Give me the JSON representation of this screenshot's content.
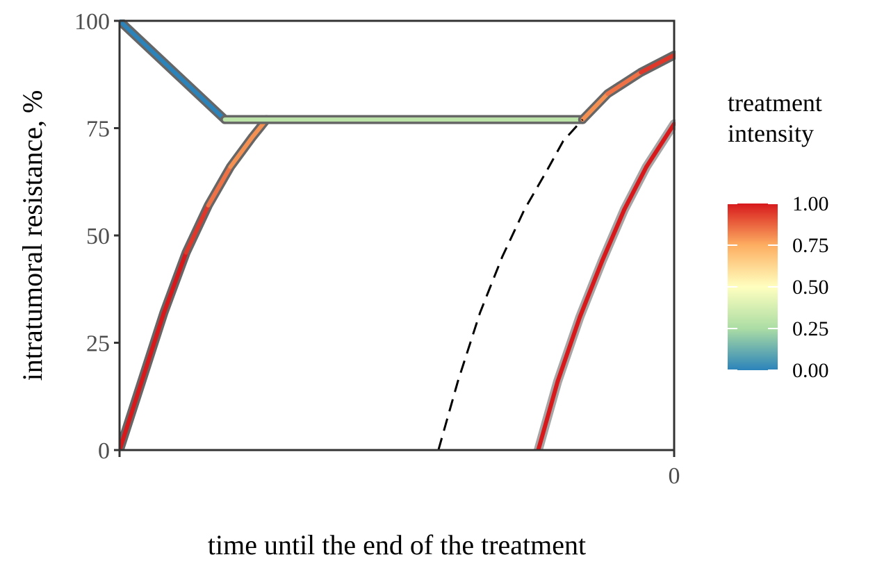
{
  "chart_data": {
    "type": "line",
    "title": "",
    "xlabel": "time until the end of the treatment",
    "ylabel": "intratumoral resistance, %",
    "xlim": [
      -100,
      0
    ],
    "ylim": [
      0,
      100
    ],
    "x_ticks": [
      {
        "value": -100,
        "label": ""
      },
      {
        "value": 0,
        "label": "0"
      }
    ],
    "y_ticks": [
      0,
      25,
      50,
      75,
      100
    ],
    "grid": false,
    "legend": {
      "title_lines": [
        "treatment",
        "intensity"
      ],
      "position": "right",
      "type": "colorbar",
      "ticks": [
        "0.00",
        "0.25",
        "0.50",
        "0.75",
        "1.00"
      ],
      "tick_values": [
        0,
        0.25,
        0.5,
        0.75,
        1
      ],
      "colors": [
        "#2b83ba",
        "#abdda4",
        "#ffffbf",
        "#fdae61",
        "#d7191c"
      ]
    },
    "series": [
      {
        "style": "solid",
        "outline": "#666666",
        "points": [
          [
            -100,
            0
          ],
          [
            -96,
            16
          ],
          [
            -92,
            32
          ],
          [
            -88,
            46
          ],
          [
            -84,
            57
          ],
          [
            -80,
            66
          ],
          [
            -76,
            73
          ],
          [
            -73.5,
            77
          ]
        ],
        "intensity": [
          1,
          1,
          1,
          1,
          0.9,
          0.8,
          0.8,
          0.8
        ]
      },
      {
        "style": "solid",
        "outline": "#666666",
        "points": [
          [
            -100,
            100
          ],
          [
            -81,
            77
          ]
        ],
        "intensity": [
          0,
          0
        ]
      },
      {
        "style": "solid",
        "outline": "#666666",
        "points": [
          [
            -81,
            77
          ],
          [
            -16.5,
            77
          ]
        ],
        "intensity": [
          0.3,
          0.3
        ]
      },
      {
        "style": "solid",
        "outline": "#666666",
        "points": [
          [
            -16.5,
            77
          ],
          [
            -12,
            83
          ],
          [
            -6,
            88
          ],
          [
            0,
            92
          ]
        ],
        "intensity": [
          0.8,
          0.8,
          0.9,
          1
        ]
      },
      {
        "style": "solid",
        "outline": "#a6a6a6",
        "points": [
          [
            -24.5,
            0
          ],
          [
            -21,
            16
          ],
          [
            -17,
            31
          ],
          [
            -13,
            44
          ],
          [
            -9,
            56
          ],
          [
            -5,
            66
          ],
          [
            0,
            76
          ]
        ],
        "intensity": [
          1,
          1,
          1,
          1,
          1,
          1,
          1
        ]
      },
      {
        "style": "dashed",
        "color": "#000000",
        "points": [
          [
            -42.5,
            0
          ],
          [
            -39,
            16
          ],
          [
            -35,
            32
          ],
          [
            -31,
            45
          ],
          [
            -27,
            56
          ],
          [
            -23,
            65
          ],
          [
            -20,
            72
          ],
          [
            -16.5,
            77
          ]
        ]
      }
    ]
  }
}
